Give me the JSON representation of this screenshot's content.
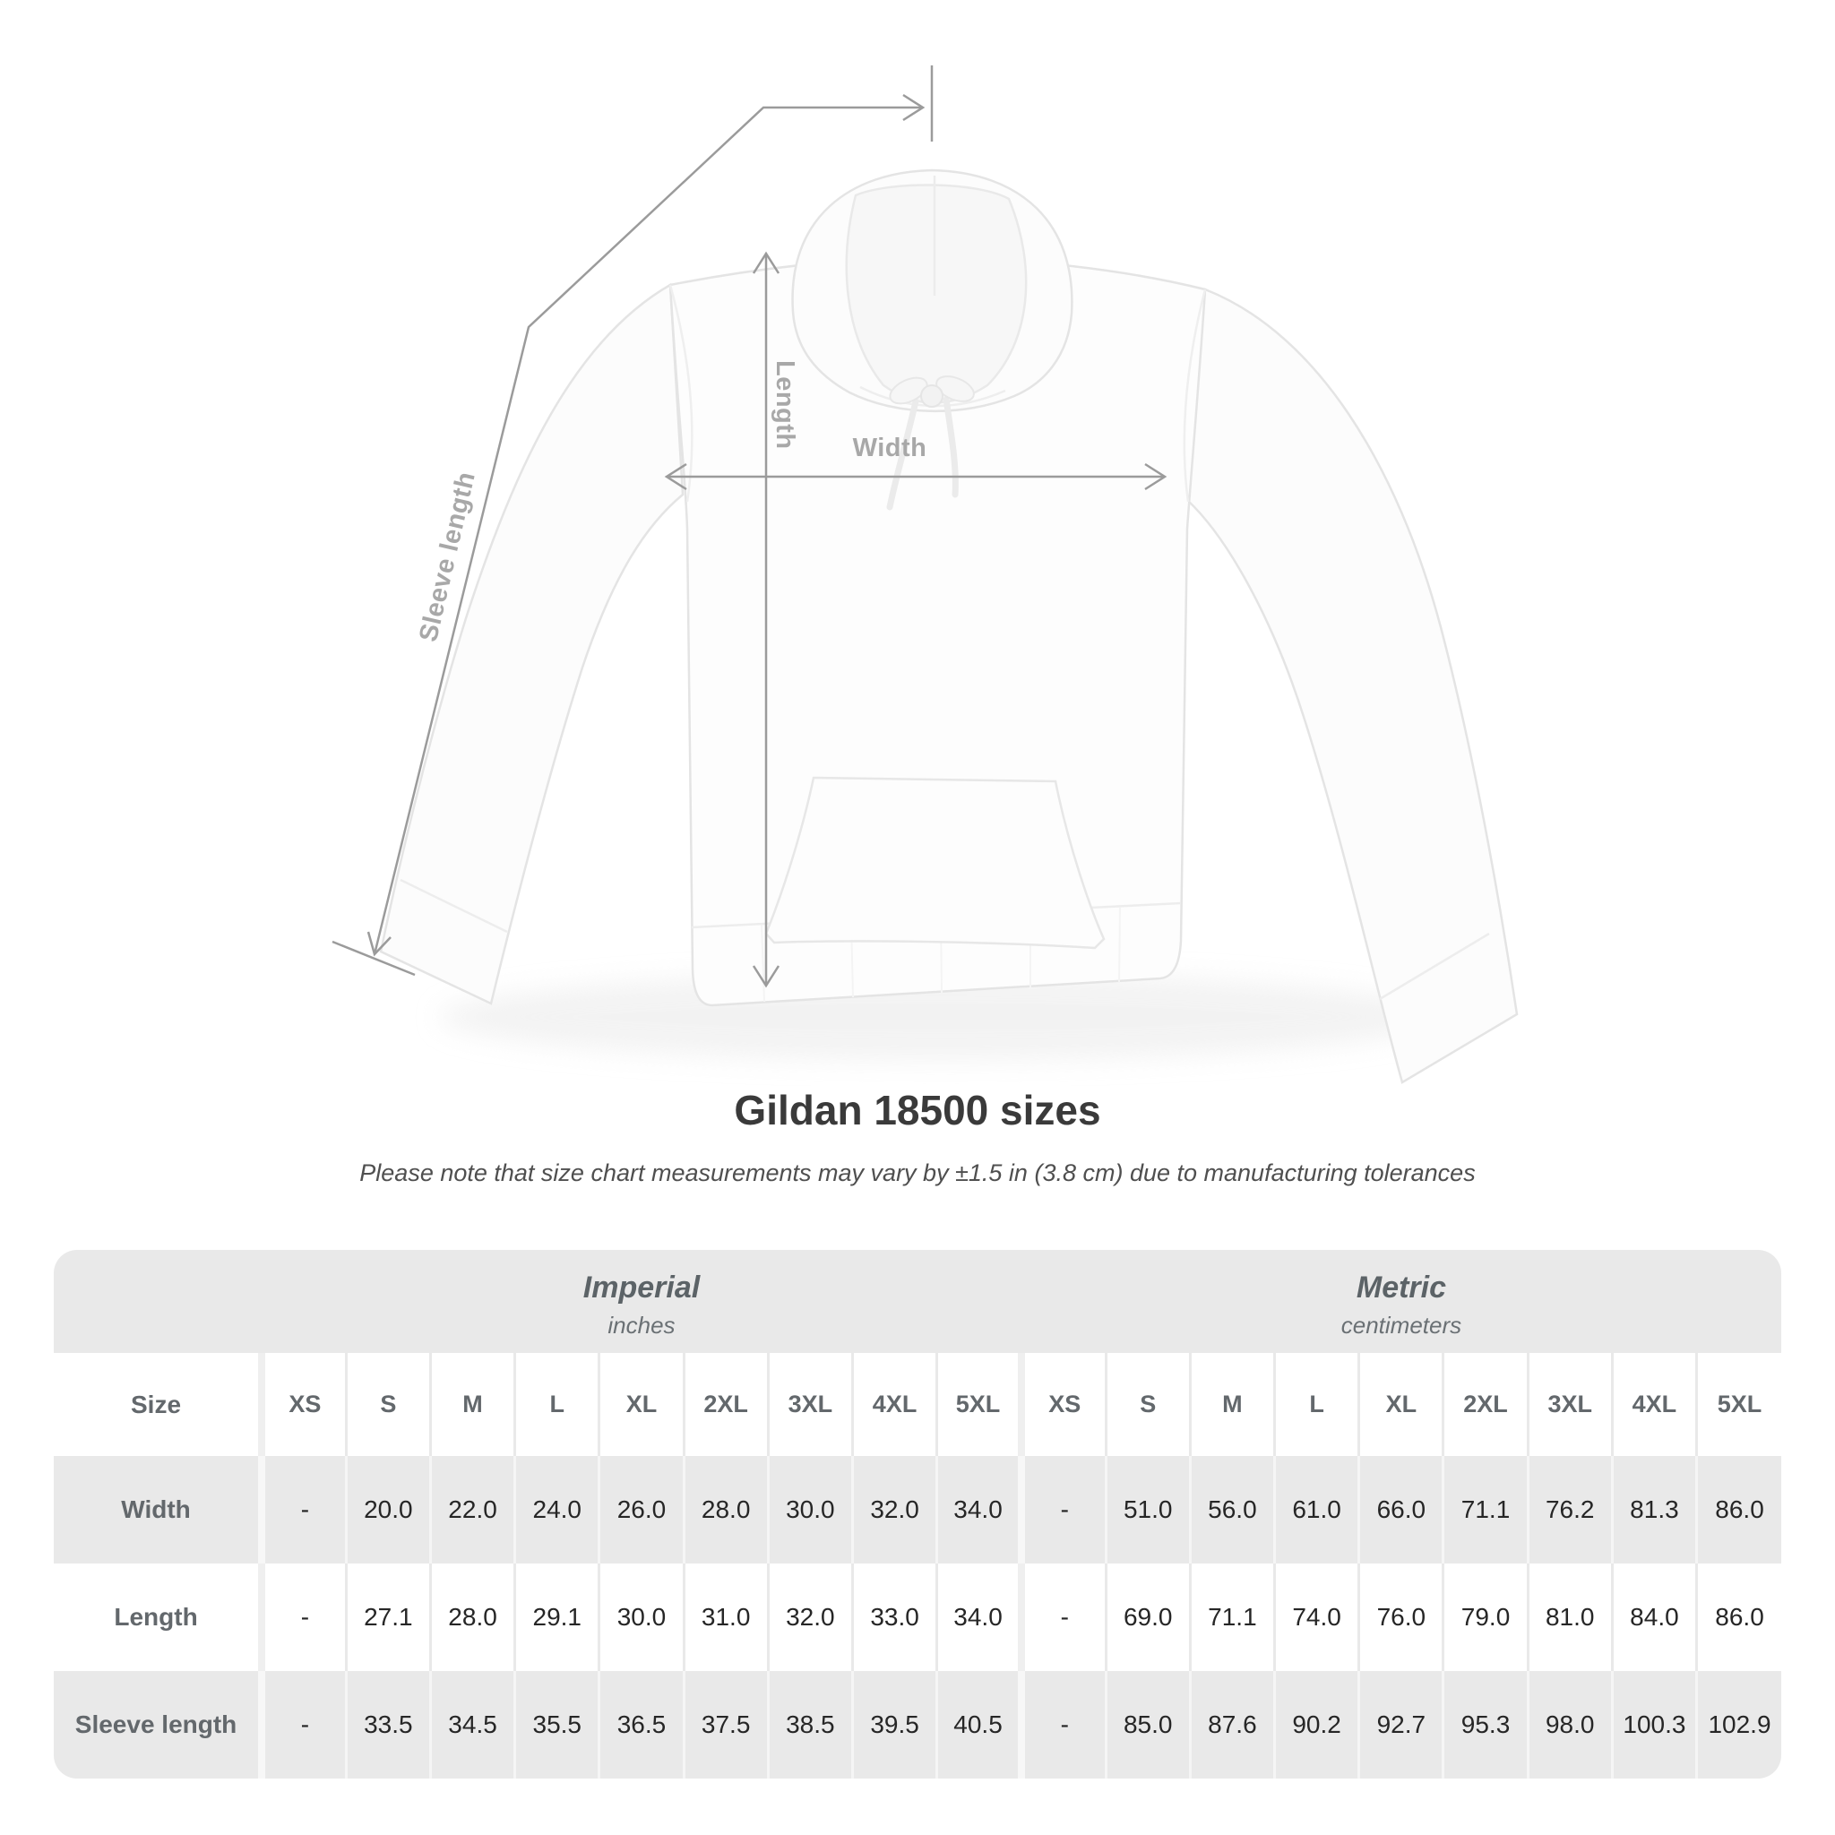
{
  "diagram": {
    "labels": {
      "length": "Length",
      "width": "Width",
      "sleeve": "Sleeve length"
    },
    "line_color": "#9b9b9b",
    "label_color": "#a8a8a8",
    "garment": "white pullover hoodie, front view"
  },
  "title": {
    "heading": "Gildan 18500 sizes",
    "note": "Please note that size chart measurements may vary by ±1.5 in (3.8 cm) due to manufacturing tolerances"
  },
  "size_table": {
    "size_label": "Size",
    "sizes": [
      "XS",
      "S",
      "M",
      "L",
      "XL",
      "2XL",
      "3XL",
      "4XL",
      "5XL"
    ],
    "unit_groups": [
      {
        "name": "Imperial",
        "unit": "inches"
      },
      {
        "name": "Metric",
        "unit": "centimeters"
      }
    ],
    "rows": [
      {
        "label": "Width",
        "imperial": [
          "-",
          "20.0",
          "22.0",
          "24.0",
          "26.0",
          "28.0",
          "30.0",
          "32.0",
          "34.0"
        ],
        "metric": [
          "-",
          "51.0",
          "56.0",
          "61.0",
          "66.0",
          "71.1",
          "76.2",
          "81.3",
          "86.0"
        ]
      },
      {
        "label": "Length",
        "imperial": [
          "-",
          "27.1",
          "28.0",
          "29.1",
          "30.0",
          "31.0",
          "32.0",
          "33.0",
          "34.0"
        ],
        "metric": [
          "-",
          "69.0",
          "71.1",
          "74.0",
          "76.0",
          "79.0",
          "81.0",
          "84.0",
          "86.0"
        ]
      },
      {
        "label": "Sleeve length",
        "imperial": [
          "-",
          "33.5",
          "34.5",
          "35.5",
          "36.5",
          "37.5",
          "38.5",
          "39.5",
          "40.5"
        ],
        "metric": [
          "-",
          "85.0",
          "87.6",
          "90.2",
          "92.7",
          "95.3",
          "98.0",
          "100.3",
          "102.9"
        ]
      }
    ],
    "colors": {
      "band": "#e9e9e9",
      "header_text": "#63686c",
      "value_text": "#262626"
    }
  },
  "chart_data": {
    "type": "table",
    "title": "Gildan 18500 sizes",
    "columns_imperial_inches": [
      "XS",
      "S",
      "M",
      "L",
      "XL",
      "2XL",
      "3XL",
      "4XL",
      "5XL"
    ],
    "columns_metric_centimeters": [
      "XS",
      "S",
      "M",
      "L",
      "XL",
      "2XL",
      "3XL",
      "4XL",
      "5XL"
    ],
    "rows": [
      {
        "measure": "Width",
        "inches": [
          null,
          20.0,
          22.0,
          24.0,
          26.0,
          28.0,
          30.0,
          32.0,
          34.0
        ],
        "cm": [
          null,
          51.0,
          56.0,
          61.0,
          66.0,
          71.1,
          76.2,
          81.3,
          86.0
        ]
      },
      {
        "measure": "Length",
        "inches": [
          null,
          27.1,
          28.0,
          29.1,
          30.0,
          31.0,
          32.0,
          33.0,
          34.0
        ],
        "cm": [
          null,
          69.0,
          71.1,
          74.0,
          76.0,
          79.0,
          81.0,
          84.0,
          86.0
        ]
      },
      {
        "measure": "Sleeve length",
        "inches": [
          null,
          33.5,
          34.5,
          35.5,
          36.5,
          37.5,
          38.5,
          39.5,
          40.5
        ],
        "cm": [
          null,
          85.0,
          87.6,
          90.2,
          92.7,
          95.3,
          98.0,
          100.3,
          102.9
        ]
      }
    ]
  }
}
